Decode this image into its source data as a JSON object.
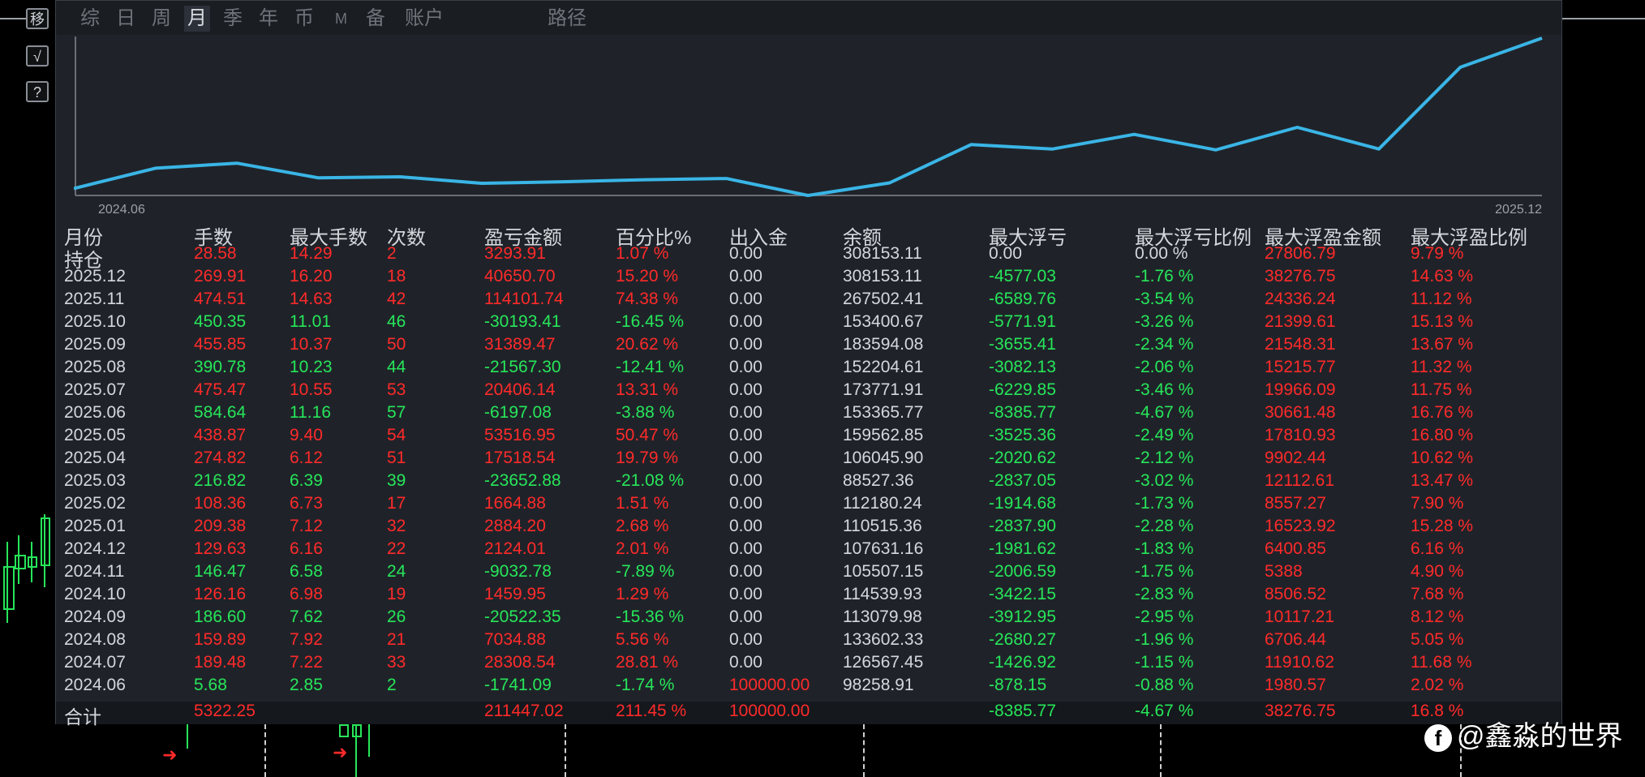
{
  "side_buttons": [
    "移",
    "√",
    "?"
  ],
  "tabs": [
    {
      "label": "综"
    },
    {
      "label": "日"
    },
    {
      "label": "周"
    },
    {
      "label": "月",
      "active": true
    },
    {
      "label": "季"
    },
    {
      "label": "年"
    },
    {
      "label": "币"
    },
    {
      "label": "M"
    },
    {
      "label": "备"
    },
    {
      "label": "账户"
    },
    {
      "label": "路径"
    }
  ],
  "chart_data": {
    "type": "line",
    "title": "",
    "xlabel": "",
    "ylabel": "",
    "x_start_label": "2024.06",
    "x_end_label": "2025.12",
    "color": "#3ab5e6",
    "values": [
      98258.91,
      126567.45,
      133602.33,
      113079.98,
      114539.93,
      105507.15,
      107631.16,
      110515.36,
      112180.24,
      88527.36,
      106045.9,
      159562.85,
      153365.77,
      173771.91,
      152204.61,
      183594.08,
      153400.67,
      267502.41,
      308153.11
    ]
  },
  "table": {
    "headers": [
      "月份",
      "手数",
      "最大手数",
      "次数",
      "盈亏金额",
      "百分比%",
      "出入金",
      "余额",
      "最大浮亏",
      "最大浮亏比例",
      "最大浮盈金额",
      "最大浮盈比例"
    ],
    "rows": [
      {
        "c": [
          "持仓",
          "28.58",
          "14.29",
          "2",
          "3293.91",
          "1.07 %",
          "0.00",
          "308153.11",
          "0.00",
          "0.00 %",
          "27806.79",
          "9.79 %"
        ],
        "k": [
          "w",
          "r",
          "r",
          "r",
          "r",
          "r",
          "w",
          "w",
          "w",
          "w",
          "r",
          "r"
        ]
      },
      {
        "c": [
          "2025.12",
          "269.91",
          "16.20",
          "18",
          "40650.70",
          "15.20 %",
          "0.00",
          "308153.11",
          "-4577.03",
          "-1.76 %",
          "38276.75",
          "14.63 %"
        ],
        "k": [
          "w",
          "r",
          "r",
          "r",
          "r",
          "r",
          "w",
          "w",
          "g",
          "g",
          "r",
          "r"
        ]
      },
      {
        "c": [
          "2025.11",
          "474.51",
          "14.63",
          "42",
          "114101.74",
          "74.38 %",
          "0.00",
          "267502.41",
          "-6589.76",
          "-3.54 %",
          "24336.24",
          "11.12 %"
        ],
        "k": [
          "w",
          "r",
          "r",
          "r",
          "r",
          "r",
          "w",
          "w",
          "g",
          "g",
          "r",
          "r"
        ]
      },
      {
        "c": [
          "2025.10",
          "450.35",
          "11.01",
          "46",
          "-30193.41",
          "-16.45 %",
          "0.00",
          "153400.67",
          "-5771.91",
          "-3.26 %",
          "21399.61",
          "15.13 %"
        ],
        "k": [
          "w",
          "g",
          "g",
          "g",
          "g",
          "g",
          "w",
          "w",
          "g",
          "g",
          "r",
          "r"
        ]
      },
      {
        "c": [
          "2025.09",
          "455.85",
          "10.37",
          "50",
          "31389.47",
          "20.62 %",
          "0.00",
          "183594.08",
          "-3655.41",
          "-2.34 %",
          "21548.31",
          "13.67 %"
        ],
        "k": [
          "w",
          "r",
          "r",
          "r",
          "r",
          "r",
          "w",
          "w",
          "g",
          "g",
          "r",
          "r"
        ]
      },
      {
        "c": [
          "2025.08",
          "390.78",
          "10.23",
          "44",
          "-21567.30",
          "-12.41 %",
          "0.00",
          "152204.61",
          "-3082.13",
          "-2.06 %",
          "15215.77",
          "11.32 %"
        ],
        "k": [
          "w",
          "g",
          "g",
          "g",
          "g",
          "g",
          "w",
          "w",
          "g",
          "g",
          "r",
          "r"
        ]
      },
      {
        "c": [
          "2025.07",
          "475.47",
          "10.55",
          "53",
          "20406.14",
          "13.31 %",
          "0.00",
          "173771.91",
          "-6229.85",
          "-3.46 %",
          "19966.09",
          "11.75 %"
        ],
        "k": [
          "w",
          "r",
          "r",
          "r",
          "r",
          "r",
          "w",
          "w",
          "g",
          "g",
          "r",
          "r"
        ]
      },
      {
        "c": [
          "2025.06",
          "584.64",
          "11.16",
          "57",
          "-6197.08",
          "-3.88 %",
          "0.00",
          "153365.77",
          "-8385.77",
          "-4.67 %",
          "30661.48",
          "16.76 %"
        ],
        "k": [
          "w",
          "g",
          "g",
          "g",
          "g",
          "g",
          "w",
          "w",
          "g",
          "g",
          "r",
          "r"
        ]
      },
      {
        "c": [
          "2025.05",
          "438.87",
          "9.40",
          "54",
          "53516.95",
          "50.47 %",
          "0.00",
          "159562.85",
          "-3525.36",
          "-2.49 %",
          "17810.93",
          "16.80 %"
        ],
        "k": [
          "w",
          "r",
          "r",
          "r",
          "r",
          "r",
          "w",
          "w",
          "g",
          "g",
          "r",
          "r"
        ]
      },
      {
        "c": [
          "2025.04",
          "274.82",
          "6.12",
          "51",
          "17518.54",
          "19.79 %",
          "0.00",
          "106045.90",
          "-2020.62",
          "-2.12 %",
          "9902.44",
          "10.62 %"
        ],
        "k": [
          "w",
          "r",
          "r",
          "r",
          "r",
          "r",
          "w",
          "w",
          "g",
          "g",
          "r",
          "r"
        ]
      },
      {
        "c": [
          "2025.03",
          "216.82",
          "6.39",
          "39",
          "-23652.88",
          "-21.08 %",
          "0.00",
          "88527.36",
          "-2837.05",
          "-3.02 %",
          "12112.61",
          "13.47 %"
        ],
        "k": [
          "w",
          "g",
          "g",
          "g",
          "g",
          "g",
          "w",
          "w",
          "g",
          "g",
          "r",
          "r"
        ]
      },
      {
        "c": [
          "2025.02",
          "108.36",
          "6.73",
          "17",
          "1664.88",
          "1.51 %",
          "0.00",
          "112180.24",
          "-1914.68",
          "-1.73 %",
          "8557.27",
          "7.90 %"
        ],
        "k": [
          "w",
          "r",
          "r",
          "r",
          "r",
          "r",
          "w",
          "w",
          "g",
          "g",
          "r",
          "r"
        ]
      },
      {
        "c": [
          "2025.01",
          "209.38",
          "7.12",
          "32",
          "2884.20",
          "2.68 %",
          "0.00",
          "110515.36",
          "-2837.90",
          "-2.28 %",
          "16523.92",
          "15.28 %"
        ],
        "k": [
          "w",
          "r",
          "r",
          "r",
          "r",
          "r",
          "w",
          "w",
          "g",
          "g",
          "r",
          "r"
        ]
      },
      {
        "c": [
          "2024.12",
          "129.63",
          "6.16",
          "22",
          "2124.01",
          "2.01 %",
          "0.00",
          "107631.16",
          "-1981.62",
          "-1.83 %",
          "6400.85",
          "6.16 %"
        ],
        "k": [
          "w",
          "r",
          "r",
          "r",
          "r",
          "r",
          "w",
          "w",
          "g",
          "g",
          "r",
          "r"
        ]
      },
      {
        "c": [
          "2024.11",
          "146.47",
          "6.58",
          "24",
          "-9032.78",
          "-7.89 %",
          "0.00",
          "105507.15",
          "-2006.59",
          "-1.75 %",
          "5388",
          "4.90 %"
        ],
        "k": [
          "w",
          "g",
          "g",
          "g",
          "g",
          "g",
          "w",
          "w",
          "g",
          "g",
          "r",
          "r"
        ]
      },
      {
        "c": [
          "2024.10",
          "126.16",
          "6.98",
          "19",
          "1459.95",
          "1.29 %",
          "0.00",
          "114539.93",
          "-3422.15",
          "-2.83 %",
          "8506.52",
          "7.68 %"
        ],
        "k": [
          "w",
          "r",
          "r",
          "r",
          "r",
          "r",
          "w",
          "w",
          "g",
          "g",
          "r",
          "r"
        ]
      },
      {
        "c": [
          "2024.09",
          "186.60",
          "7.62",
          "26",
          "-20522.35",
          "-15.36 %",
          "0.00",
          "113079.98",
          "-3912.95",
          "-2.95 %",
          "10117.21",
          "8.12 %"
        ],
        "k": [
          "w",
          "g",
          "g",
          "g",
          "g",
          "g",
          "w",
          "w",
          "g",
          "g",
          "r",
          "r"
        ]
      },
      {
        "c": [
          "2024.08",
          "159.89",
          "7.92",
          "21",
          "7034.88",
          "5.56 %",
          "0.00",
          "133602.33",
          "-2680.27",
          "-1.96 %",
          "6706.44",
          "5.05 %"
        ],
        "k": [
          "w",
          "r",
          "r",
          "r",
          "r",
          "r",
          "w",
          "w",
          "g",
          "g",
          "r",
          "r"
        ]
      },
      {
        "c": [
          "2024.07",
          "189.48",
          "7.22",
          "33",
          "28308.54",
          "28.81 %",
          "0.00",
          "126567.45",
          "-1426.92",
          "-1.15 %",
          "11910.62",
          "11.68 %"
        ],
        "k": [
          "w",
          "r",
          "r",
          "r",
          "r",
          "r",
          "w",
          "w",
          "g",
          "g",
          "r",
          "r"
        ]
      },
      {
        "c": [
          "2024.06",
          "5.68",
          "2.85",
          "2",
          "-1741.09",
          "-1.74 %",
          "100000.00",
          "98258.91",
          "-878.15",
          "-0.88 %",
          "1980.57",
          "2.02 %"
        ],
        "k": [
          "w",
          "g",
          "g",
          "g",
          "g",
          "g",
          "r",
          "w",
          "g",
          "g",
          "r",
          "r"
        ]
      }
    ],
    "total": {
      "c": [
        "合计",
        "5322.25",
        "",
        "",
        "211447.02",
        "211.45 %",
        "100000.00",
        "",
        "-8385.77",
        "-4.67 %",
        "38276.75",
        "16.8 %"
      ],
      "k": [
        "w",
        "r",
        "r",
        "r",
        "r",
        "r",
        "r",
        "w",
        "g",
        "g",
        "r",
        "r"
      ]
    }
  },
  "watermark": {
    "icon": "f",
    "text": "@鑫淼的世界"
  }
}
